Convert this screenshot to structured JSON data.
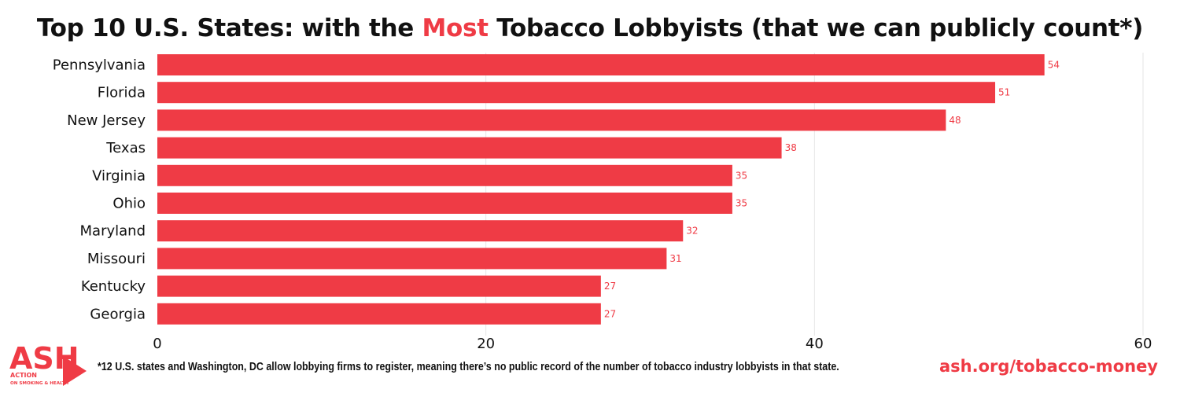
{
  "title": {
    "prefix": "Top 10 U.S. States: with the ",
    "highlight": "Most",
    "suffix": " Tobacco Lobbyists (that we can publicly count*)"
  },
  "colors": {
    "bar": "#ef3b45",
    "label": "#ef3b45",
    "grid": "#e6e6e6",
    "text": "#111111"
  },
  "chart_data": {
    "type": "bar",
    "orientation": "horizontal",
    "categories": [
      "Pennsylvania",
      "Florida",
      "New Jersey",
      "Texas",
      "Virginia",
      "Ohio",
      "Maryland",
      "Missouri",
      "Kentucky",
      "Georgia"
    ],
    "values": [
      54,
      51,
      48,
      38,
      35,
      35,
      32,
      31,
      27,
      27
    ],
    "xlim": [
      0,
      60
    ],
    "xticks": [
      0,
      20,
      40,
      60
    ],
    "grid": true,
    "data_labels": true
  },
  "logo": {
    "letters": "ASH",
    "tagline_1": "ACTION",
    "tagline_2": "ON SMOKING & HEALTH"
  },
  "footnote": "*12 U.S. states and Washington, DC allow lobbying firms to register, meaning there’s no public record of the number of tobacco industry lobbyists in that state.",
  "url": "ash.org/tobacco-money"
}
